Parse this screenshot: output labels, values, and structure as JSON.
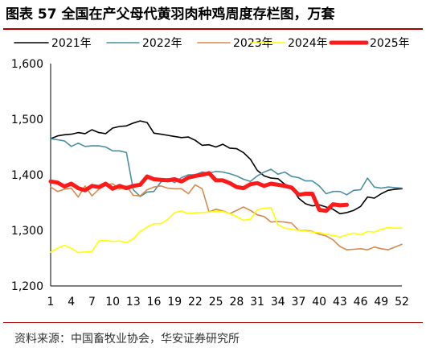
{
  "figure": {
    "title": "图表 57  全国在产父母代黄羽肉种鸡周度存栏图，万套",
    "source": "资料来源：中国畜牧业协会，华安证券研究所"
  },
  "chart_data": {
    "type": "line",
    "title": "",
    "xlabel": "",
    "ylabel": "",
    "xlim": [
      1,
      52
    ],
    "ylim": [
      1200,
      1600
    ],
    "x_ticks": [
      1,
      4,
      7,
      10,
      13,
      16,
      19,
      22,
      25,
      28,
      31,
      34,
      37,
      40,
      43,
      46,
      49,
      52
    ],
    "y_ticks": [
      1200,
      1300,
      1400,
      1500,
      1600
    ],
    "y_tick_labels": [
      "1,200",
      "1,300",
      "1,400",
      "1,500",
      "1,600"
    ],
    "grid": false,
    "legend": "top",
    "series": [
      {
        "name": "2021年",
        "color": "#000000",
        "width": 1.6,
        "x": [
          1,
          2,
          3,
          4,
          5,
          6,
          7,
          8,
          9,
          10,
          11,
          12,
          13,
          14,
          15,
          16,
          17,
          18,
          19,
          20,
          21,
          22,
          23,
          24,
          25,
          26,
          27,
          28,
          29,
          30,
          31,
          32,
          33,
          34,
          35,
          36,
          37,
          38,
          39,
          40,
          41,
          42,
          43,
          44,
          45,
          46,
          47,
          48,
          49,
          50,
          51,
          52
        ],
        "values": [
          1465,
          1470,
          1472,
          1473,
          1476,
          1474,
          1481,
          1476,
          1474,
          1484,
          1487,
          1488,
          1493,
          1497,
          1494,
          1475,
          1473,
          1471,
          1469,
          1467,
          1468,
          1462,
          1453,
          1454,
          1450,
          1455,
          1448,
          1447,
          1440,
          1428,
          1408,
          1398,
          1394,
          1393,
          1383,
          1378,
          1358,
          1348,
          1344,
          1346,
          1342,
          1338,
          1330,
          1332,
          1336,
          1343,
          1360,
          1358,
          1366,
          1372,
          1374,
          1375
        ]
      },
      {
        "name": "2022年",
        "color": "#4a90a4",
        "width": 1.6,
        "x": [
          1,
          2,
          3,
          4,
          5,
          6,
          7,
          8,
          9,
          10,
          11,
          12,
          13,
          14,
          15,
          16,
          17,
          18,
          19,
          20,
          21,
          22,
          23,
          24,
          25,
          26,
          27,
          28,
          29,
          30,
          31,
          32,
          33,
          34,
          35,
          36,
          37,
          38,
          39,
          40,
          41,
          42,
          43,
          44,
          45,
          46,
          47,
          48,
          49,
          50,
          51,
          52
        ],
        "values": [
          1465,
          1463,
          1461,
          1451,
          1457,
          1451,
          1452,
          1452,
          1450,
          1443,
          1443,
          1440,
          1373,
          1361,
          1369,
          1370,
          1387,
          1393,
          1386,
          1395,
          1400,
          1400,
          1405,
          1403,
          1406,
          1405,
          1402,
          1398,
          1392,
          1388,
          1398,
          1405,
          1410,
          1401,
          1405,
          1397,
          1395,
          1389,
          1389,
          1380,
          1366,
          1370,
          1370,
          1364,
          1372,
          1373,
          1394,
          1378,
          1376,
          1378,
          1377,
          1376
        ]
      },
      {
        "name": "2023年",
        "color": "#d9894a",
        "width": 1.6,
        "x": [
          1,
          2,
          3,
          4,
          5,
          6,
          7,
          8,
          9,
          10,
          11,
          12,
          13,
          14,
          15,
          16,
          17,
          18,
          19,
          20,
          21,
          22,
          23,
          24,
          25,
          26,
          27,
          28,
          29,
          30,
          31,
          32,
          33,
          34,
          35,
          36,
          37,
          38,
          39,
          40,
          41,
          42,
          43,
          44,
          45,
          46,
          47,
          48,
          49,
          50,
          51,
          52
        ],
        "values": [
          1378,
          1370,
          1374,
          1376,
          1360,
          1380,
          1362,
          1374,
          1381,
          1384,
          1374,
          1380,
          1363,
          1362,
          1373,
          1378,
          1380,
          1376,
          1375,
          1375,
          1366,
          1382,
          1375,
          1333,
          1338,
          1335,
          1330,
          1336,
          1342,
          1336,
          1328,
          1325,
          1315,
          1316,
          1315,
          1313,
          1300,
          1300,
          1298,
          1293,
          1290,
          1283,
          1271,
          1265,
          1266,
          1267,
          1265,
          1270,
          1267,
          1265,
          1270,
          1275
        ]
      },
      {
        "name": "2024年",
        "color": "#ffff00",
        "width": 1.6,
        "x": [
          1,
          2,
          3,
          4,
          5,
          6,
          7,
          8,
          9,
          10,
          11,
          12,
          13,
          14,
          15,
          16,
          17,
          18,
          19,
          20,
          21,
          22,
          23,
          24,
          25,
          26,
          27,
          28,
          29,
          30,
          31,
          32,
          33,
          34,
          35,
          36,
          37,
          38,
          39,
          40,
          41,
          42,
          43,
          44,
          45,
          46,
          47,
          48,
          49,
          50,
          51,
          52
        ],
        "values": [
          1261,
          1268,
          1273,
          1268,
          1260,
          1261,
          1262,
          1281,
          1282,
          1280,
          1281,
          1278,
          1285,
          1298,
          1306,
          1312,
          1312,
          1320,
          1332,
          1335,
          1330,
          1332,
          1332,
          1333,
          1334,
          1334,
          1330,
          1325,
          1318,
          1320,
          1337,
          1340,
          1341,
          1310,
          1304,
          1302,
          1300,
          1299,
          1297,
          1296,
          1293,
          1291,
          1288,
          1292,
          1295,
          1292,
          1298,
          1297,
          1302,
          1305,
          1304,
          1304
        ]
      },
      {
        "name": "2025年",
        "color": "#ff1a1a",
        "width": 5,
        "x": [
          1,
          2,
          3,
          4,
          5,
          6,
          7,
          8,
          9,
          10,
          11,
          12,
          13,
          14,
          15,
          16,
          17,
          18,
          19,
          20,
          21,
          22,
          23,
          24,
          25,
          26,
          27,
          28,
          29,
          30,
          31,
          32,
          33,
          34,
          35,
          36,
          37,
          38,
          39,
          40,
          41,
          42,
          43,
          44
        ],
        "values": [
          1388,
          1386,
          1379,
          1384,
          1376,
          1372,
          1380,
          1378,
          1384,
          1375,
          1380,
          1376,
          1380,
          1382,
          1397,
          1392,
          1391,
          1390,
          1392,
          1388,
          1395,
          1398,
          1400,
          1403,
          1390,
          1390,
          1385,
          1378,
          1376,
          1383,
          1385,
          1380,
          1384,
          1382,
          1380,
          1377,
          1364,
          1366,
          1366,
          1337,
          1335,
          1347,
          1345,
          1346
        ]
      }
    ]
  }
}
